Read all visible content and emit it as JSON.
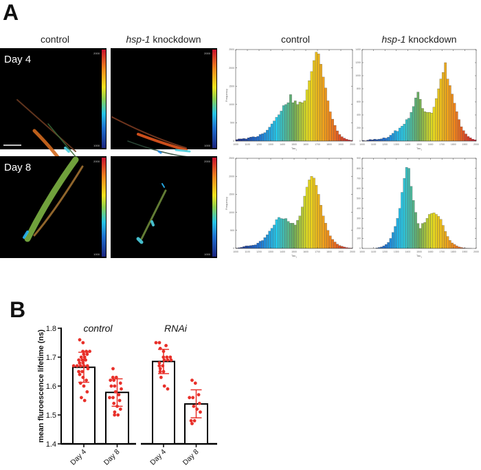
{
  "panel_a": {
    "label": "A",
    "image_titles": {
      "control": "control",
      "knockdown_gene": "hsp-1",
      "knockdown_rest": " knockdown"
    },
    "row_labels": [
      "Day 4",
      "Day 8"
    ],
    "colorbar": {
      "max": "2000",
      "min": "1000"
    },
    "hist_titles": {
      "control": "control",
      "knockdown_gene": "hsp-1",
      "knockdown_rest": " knockdown"
    }
  },
  "panel_b": {
    "label": "B"
  },
  "chart_data": [
    {
      "type": "bar",
      "panel": "A",
      "row": "Day 4",
      "column": "control",
      "xlabel": "Tau",
      "xlabel_sub": "1",
      "ylabel": "Frequency",
      "xlim": [
        1000,
        2000
      ],
      "ylim": [
        0,
        2500
      ],
      "ytick_step": 500,
      "xticks": [
        "1000",
        "1100",
        "1200",
        "1300",
        "1400",
        "1500",
        "1600",
        "1700",
        "1800",
        "1900",
        "2000"
      ],
      "bin_start": [
        1000,
        1020,
        1040,
        1060,
        1080,
        1100,
        1120,
        1140,
        1160,
        1180,
        1200,
        1220,
        1240,
        1260,
        1280,
        1300,
        1320,
        1340,
        1360,
        1380,
        1400,
        1420,
        1440,
        1460,
        1480,
        1500,
        1520,
        1540,
        1560,
        1580,
        1600,
        1620,
        1640,
        1660,
        1680,
        1700,
        1720,
        1740,
        1760,
        1780,
        1800,
        1820,
        1840,
        1860,
        1880,
        1900,
        1920,
        1940,
        1960,
        1980
      ],
      "values": [
        40,
        60,
        60,
        70,
        60,
        90,
        110,
        120,
        110,
        130,
        180,
        200,
        230,
        300,
        380,
        470,
        550,
        650,
        720,
        820,
        970,
        1000,
        1050,
        1270,
        1050,
        1100,
        1000,
        1070,
        1050,
        1100,
        1400,
        1650,
        1900,
        2200,
        2430,
        2380,
        2100,
        1750,
        1450,
        1100,
        800,
        600,
        430,
        280,
        180,
        120,
        80,
        50,
        30,
        20
      ]
    },
    {
      "type": "bar",
      "panel": "A",
      "row": "Day 4",
      "column": "hsp-1 knockdown",
      "xlabel": "Tau",
      "xlabel_sub": "1",
      "ylabel": "",
      "xlim": [
        1000,
        2000
      ],
      "ylim": [
        0,
        1400
      ],
      "ytick_step": 200,
      "xticks": [
        "1000",
        "1100",
        "1200",
        "1300",
        "1400",
        "1500",
        "1600",
        "1700",
        "1800",
        "1900",
        "2000"
      ],
      "bin_start": [
        1000,
        1020,
        1040,
        1060,
        1080,
        1100,
        1120,
        1140,
        1160,
        1180,
        1200,
        1220,
        1240,
        1260,
        1280,
        1300,
        1320,
        1340,
        1360,
        1380,
        1400,
        1420,
        1440,
        1460,
        1480,
        1500,
        1520,
        1540,
        1560,
        1580,
        1600,
        1620,
        1640,
        1660,
        1680,
        1700,
        1720,
        1740,
        1760,
        1780,
        1800,
        1820,
        1840,
        1860,
        1880,
        1900,
        1920,
        1940,
        1960,
        1980
      ],
      "values": [
        10,
        5,
        15,
        25,
        20,
        30,
        25,
        30,
        35,
        50,
        45,
        60,
        90,
        120,
        160,
        150,
        200,
        230,
        260,
        330,
        350,
        440,
        530,
        660,
        750,
        640,
        500,
        450,
        440,
        440,
        430,
        520,
        650,
        800,
        950,
        1050,
        1200,
        950,
        850,
        720,
        580,
        450,
        330,
        220,
        160,
        110,
        70,
        50,
        30,
        20
      ]
    },
    {
      "type": "bar",
      "panel": "A",
      "row": "Day 8",
      "column": "control",
      "xlabel": "Tau",
      "xlabel_sub": "1",
      "ylabel": "Frequency",
      "xlim": [
        1000,
        2000
      ],
      "ylim": [
        0,
        2500
      ],
      "ytick_step": 500,
      "xticks": [
        "1000",
        "1100",
        "1200",
        "1300",
        "1400",
        "1500",
        "1600",
        "1700",
        "1800",
        "1900",
        "2000"
      ],
      "bin_start": [
        1000,
        1020,
        1040,
        1060,
        1080,
        1100,
        1120,
        1140,
        1160,
        1180,
        1200,
        1220,
        1240,
        1260,
        1280,
        1300,
        1320,
        1340,
        1360,
        1380,
        1400,
        1420,
        1440,
        1460,
        1480,
        1500,
        1520,
        1540,
        1560,
        1580,
        1600,
        1620,
        1640,
        1660,
        1680,
        1700,
        1720,
        1740,
        1760,
        1780,
        1800,
        1820,
        1840,
        1860,
        1880,
        1900,
        1920,
        1940,
        1960,
        1980
      ],
      "values": [
        10,
        20,
        30,
        50,
        70,
        70,
        80,
        90,
        100,
        150,
        200,
        220,
        300,
        380,
        480,
        560,
        650,
        800,
        860,
        830,
        820,
        830,
        750,
        700,
        700,
        650,
        780,
        900,
        1150,
        1450,
        1700,
        1900,
        2000,
        1950,
        1750,
        1500,
        1200,
        900,
        700,
        500,
        350,
        250,
        180,
        120,
        80,
        60,
        40,
        25,
        15,
        10
      ]
    },
    {
      "type": "bar",
      "panel": "A",
      "row": "Day 8",
      "column": "hsp-1 knockdown",
      "xlabel": "Tau",
      "xlabel_sub": "1",
      "ylabel": "",
      "xlim": [
        1000,
        2000
      ],
      "ylim": [
        0,
        900
      ],
      "ytick_step": 100,
      "xticks": [
        "1000",
        "1100",
        "1200",
        "1300",
        "1400",
        "1500",
        "1600",
        "1700",
        "1800",
        "1900",
        "2000"
      ],
      "bin_start": [
        1000,
        1020,
        1040,
        1060,
        1080,
        1100,
        1120,
        1140,
        1160,
        1180,
        1200,
        1220,
        1240,
        1260,
        1280,
        1300,
        1320,
        1340,
        1360,
        1380,
        1400,
        1420,
        1440,
        1460,
        1480,
        1500,
        1520,
        1540,
        1560,
        1580,
        1600,
        1620,
        1640,
        1660,
        1680,
        1700,
        1720,
        1740,
        1760,
        1780,
        1800,
        1820,
        1840,
        1860,
        1880,
        1900,
        1920,
        1940,
        1960,
        1980
      ],
      "values": [
        0,
        0,
        0,
        0,
        0,
        0,
        5,
        10,
        15,
        25,
        40,
        60,
        100,
        160,
        220,
        300,
        400,
        560,
        700,
        810,
        800,
        620,
        480,
        360,
        250,
        200,
        250,
        260,
        300,
        340,
        350,
        355,
        340,
        320,
        290,
        230,
        170,
        120,
        80,
        55,
        40,
        25,
        15,
        10,
        5,
        3,
        2,
        1,
        0,
        0
      ]
    },
    {
      "type": "bar",
      "panel": "B",
      "ylabel": "mean fluroescence lifetime (ns)",
      "ylim": [
        1.4,
        1.8
      ],
      "yticks": [
        "1.4",
        "1.5",
        "1.6",
        "1.7",
        "1.8"
      ],
      "groups": [
        {
          "name": "control",
          "categories": [
            {
              "label": "Day 4",
              "mean": 1.665,
              "sd_low": 1.613,
              "sd_high": 1.717,
              "points": [
                1.76,
                1.75,
                1.72,
                1.72,
                1.72,
                1.71,
                1.71,
                1.7,
                1.7,
                1.69,
                1.69,
                1.69,
                1.68,
                1.68,
                1.67,
                1.67,
                1.67,
                1.67,
                1.67,
                1.66,
                1.65,
                1.65,
                1.64,
                1.63,
                1.62,
                1.61,
                1.6,
                1.58,
                1.56,
                1.55
              ]
            },
            {
              "label": "Day 8",
              "mean": 1.578,
              "sd_low": 1.53,
              "sd_high": 1.625,
              "points": [
                1.66,
                1.63,
                1.63,
                1.62,
                1.62,
                1.61,
                1.6,
                1.6,
                1.59,
                1.58,
                1.57,
                1.56,
                1.56,
                1.55,
                1.54,
                1.53,
                1.52,
                1.51,
                1.5,
                1.5
              ]
            }
          ]
        },
        {
          "name": "RNAi",
          "categories": [
            {
              "label": "Day 4",
              "mean": 1.685,
              "sd_low": 1.643,
              "sd_high": 1.727,
              "points": [
                1.75,
                1.75,
                1.74,
                1.73,
                1.72,
                1.7,
                1.7,
                1.7,
                1.69,
                1.69,
                1.69,
                1.68,
                1.67,
                1.67,
                1.66,
                1.65,
                1.65,
                1.63,
                1.6,
                1.59
              ]
            },
            {
              "label": "Day 8",
              "mean": 1.538,
              "sd_low": 1.49,
              "sd_high": 1.587,
              "points": [
                1.62,
                1.61,
                1.57,
                1.56,
                1.56,
                1.54,
                1.53,
                1.52,
                1.51,
                1.48,
                1.48,
                1.47
              ]
            }
          ]
        }
      ],
      "colors": {
        "points": "#e8302a",
        "bars": "#000000",
        "errorbars": "#e8302a"
      }
    }
  ]
}
